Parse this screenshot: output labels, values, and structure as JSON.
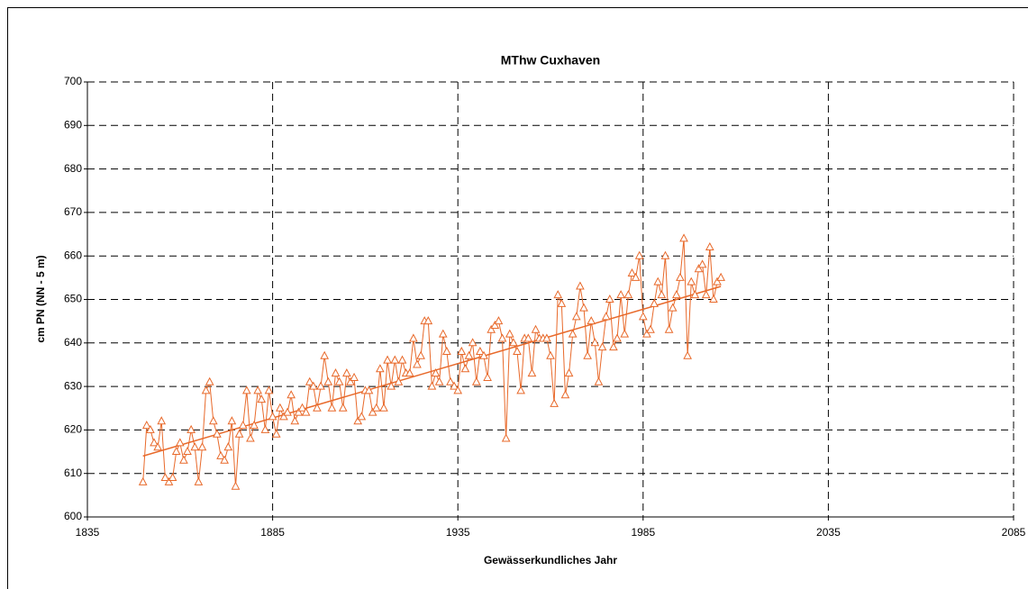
{
  "chart_data": {
    "type": "line",
    "title": "MThw Cuxhaven",
    "x_label": "Gewässerkundliches Jahr",
    "y_label": "cm PN (NN - 5 m)",
    "color": "#e8692a",
    "marker": "triangle",
    "grid": true,
    "xlim": [
      1835,
      2085
    ],
    "xticks": [
      1835,
      1885,
      1935,
      1985,
      2035,
      2085
    ],
    "ylim": [
      600,
      700
    ],
    "yticks": [
      600,
      610,
      620,
      630,
      640,
      650,
      660,
      670,
      680,
      690,
      700
    ],
    "x": [
      1850,
      1851,
      1852,
      1853,
      1854,
      1855,
      1856,
      1857,
      1858,
      1859,
      1860,
      1861,
      1862,
      1863,
      1864,
      1865,
      1866,
      1867,
      1868,
      1869,
      1870,
      1871,
      1872,
      1873,
      1874,
      1875,
      1876,
      1877,
      1878,
      1879,
      1880,
      1881,
      1882,
      1883,
      1884,
      1885,
      1886,
      1887,
      1888,
      1889,
      1890,
      1891,
      1892,
      1893,
      1894,
      1895,
      1896,
      1897,
      1898,
      1899,
      1900,
      1901,
      1902,
      1903,
      1904,
      1905,
      1906,
      1907,
      1908,
      1909,
      1910,
      1911,
      1912,
      1913,
      1914,
      1915,
      1916,
      1917,
      1918,
      1919,
      1920,
      1921,
      1922,
      1923,
      1924,
      1925,
      1926,
      1927,
      1928,
      1929,
      1930,
      1931,
      1932,
      1933,
      1934,
      1935,
      1936,
      1937,
      1938,
      1939,
      1940,
      1941,
      1942,
      1943,
      1944,
      1945,
      1946,
      1947,
      1948,
      1949,
      1950,
      1951,
      1952,
      1953,
      1954,
      1955,
      1956,
      1957,
      1958,
      1959,
      1960,
      1961,
      1962,
      1963,
      1964,
      1965,
      1966,
      1967,
      1968,
      1969,
      1970,
      1971,
      1972,
      1973,
      1974,
      1975,
      1976,
      1977,
      1978,
      1979,
      1980,
      1981,
      1982,
      1983,
      1984,
      1985,
      1986,
      1987,
      1988,
      1989,
      1990,
      1991,
      1992,
      1993,
      1994,
      1995,
      1996,
      1997,
      1998,
      1999,
      2000,
      2001,
      2002,
      2003,
      2004,
      2005,
      2006
    ],
    "values": [
      608,
      621,
      620,
      617,
      616,
      622,
      609,
      608,
      609,
      615,
      617,
      613,
      615,
      620,
      616,
      608,
      616,
      629,
      631,
      622,
      619,
      614,
      613,
      616,
      622,
      607,
      619,
      621,
      629,
      618,
      621,
      629,
      627,
      620,
      629,
      623,
      619,
      625,
      623,
      624,
      628,
      622,
      624,
      625,
      624,
      631,
      630,
      625,
      630,
      637,
      631,
      625,
      633,
      631,
      625,
      633,
      631,
      632,
      622,
      623,
      629,
      629,
      624,
      625,
      634,
      625,
      636,
      630,
      636,
      631,
      636,
      633,
      633,
      641,
      635,
      637,
      645,
      645,
      630,
      633,
      631,
      642,
      638,
      631,
      630,
      629,
      638,
      634,
      637,
      640,
      631,
      638,
      637,
      632,
      643,
      644,
      645,
      641,
      618,
      642,
      640,
      638,
      629,
      641,
      641,
      633,
      643,
      641,
      641,
      641,
      637,
      626,
      651,
      649,
      628,
      633,
      642,
      646,
      653,
      648,
      637,
      645,
      640,
      631,
      639,
      646,
      650,
      639,
      641,
      651,
      642,
      651,
      656,
      655,
      660,
      646,
      642,
      643,
      649,
      654,
      651,
      660,
      643,
      648,
      651,
      655,
      664,
      637,
      654,
      651,
      657,
      658,
      651,
      662,
      650,
      654,
      655
    ],
    "trend": {
      "x": [
        1850,
        2006
      ],
      "values": [
        614,
        653
      ]
    }
  }
}
